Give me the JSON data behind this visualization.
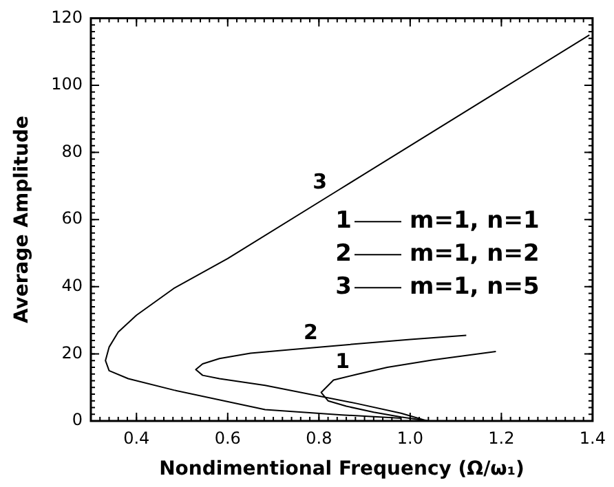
{
  "chart_data": {
    "type": "line",
    "xlabel": "Nondimentional Frequency (Ω/ω₁)",
    "ylabel": "Average Amplitude",
    "xlim": [
      0.3,
      1.4
    ],
    "ylim": [
      0,
      120
    ],
    "xticks": [
      0.4,
      0.6,
      0.8,
      {
        "value": 1,
        "label": "1.0"
      },
      1.2,
      1.4
    ],
    "yticks": [
      0,
      20,
      40,
      60,
      80,
      100,
      120
    ],
    "grid": false,
    "marker": "none",
    "line_style": "solid",
    "legend": "right",
    "series": [
      {
        "name": "m=1, n=1",
        "color": "#000000",
        "x": [
          1.188,
          1.05,
          0.95,
          0.883,
          0.832,
          0.805,
          0.82,
          0.86,
          0.92,
          0.98,
          1.04
        ],
        "values": [
          20.7,
          18.2,
          16,
          13.9,
          12.2,
          8.5,
          6,
          4.4,
          2.6,
          1.2,
          0
        ]
      },
      {
        "name": "m=1, n=2",
        "color": "#000000",
        "x": [
          1.123,
          1.0,
          0.8,
          0.65,
          0.582,
          0.545,
          0.53,
          0.545,
          0.582,
          0.682,
          0.883,
          0.98,
          1.038
        ],
        "values": [
          25.5,
          24.3,
          22,
          20.2,
          18.6,
          17,
          15.3,
          13.6,
          12.6,
          10.6,
          5.2,
          2.3,
          0
        ]
      },
      {
        "name": "m=1, n=5",
        "color": "#000000",
        "x": [
          1.393,
          1.2,
          1.0,
          0.843,
          0.6,
          0.482,
          0.4,
          0.36,
          0.34,
          0.332,
          0.34,
          0.382,
          0.482,
          0.682,
          0.85,
          0.98
        ],
        "values": [
          115,
          98.8,
          82,
          68.8,
          48.4,
          39.5,
          31.5,
          26.5,
          22,
          18,
          15,
          12.6,
          9.2,
          3.4,
          1.8,
          0.8
        ]
      }
    ],
    "annotations": [
      {
        "text": "1",
        "x": 0.87,
        "y": 13.4
      },
      {
        "text": "2",
        "x": 0.8,
        "y": 22
      },
      {
        "text": "3",
        "x": 0.82,
        "y": 67
      }
    ]
  }
}
